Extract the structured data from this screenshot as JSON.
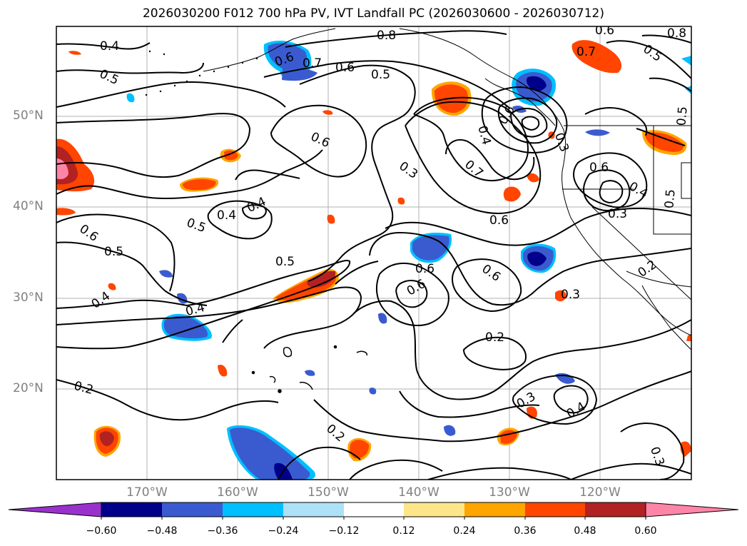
{
  "title": "2026030200 F012 700 hPa PV, IVT Landfall PC (2026030600 - 2026030712)",
  "lat_labels": [
    "50°N",
    "40°N",
    "30°N",
    "20°N"
  ],
  "lon_labels": [
    "170°W",
    "160°W",
    "150°W",
    "140°W",
    "130°W",
    "120°W"
  ],
  "colorbar": {
    "ticks": [
      "−0.60",
      "−0.48",
      "−0.36",
      "−0.24",
      "−0.12",
      "0.12",
      "0.24",
      "0.36",
      "0.48",
      "0.60"
    ],
    "colors": [
      "#9932CC",
      "#00008B",
      "#3A5BD0",
      "#00BFFF",
      "#ADE1F7",
      "#FFFFFF",
      "#FDE68A",
      "#FFA500",
      "#FF4500",
      "#B22222",
      "#FF85A8"
    ]
  },
  "contour_labels": [
    "0.4",
    "0.5",
    "0.8",
    "0.7",
    "0.6",
    "0.5",
    "0.6",
    "0.7",
    "0.8",
    "0.6",
    "0.4",
    "0.6",
    "0.3",
    "0.7",
    "0.6",
    "0.4",
    "0.3",
    "0.5",
    "0.4",
    "0.4",
    "0.5",
    "0.6",
    "0.5",
    "0.5",
    "0.6",
    "0.6",
    "0.4",
    "0.4",
    "0.3",
    "0.2",
    "0.2",
    "0.3",
    "0.4",
    "0.2",
    "0.2",
    "0.3",
    "0.6",
    "0.5",
    "0.6",
    "0.3",
    "0.5",
    "0.6"
  ]
}
